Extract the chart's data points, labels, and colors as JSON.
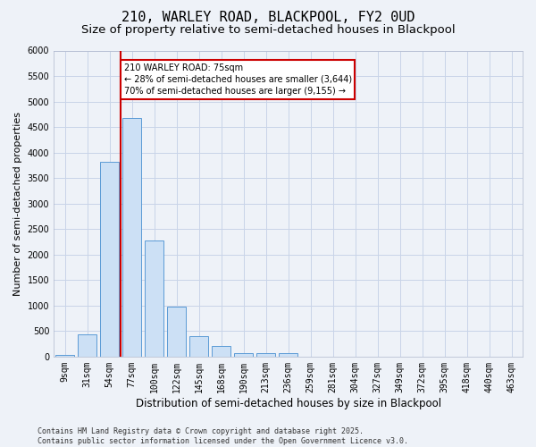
{
  "title_line1": "210, WARLEY ROAD, BLACKPOOL, FY2 0UD",
  "title_line2": "Size of property relative to semi-detached houses in Blackpool",
  "xlabel": "Distribution of semi-detached houses by size in Blackpool",
  "ylabel": "Number of semi-detached properties",
  "categories": [
    "9sqm",
    "31sqm",
    "54sqm",
    "77sqm",
    "100sqm",
    "122sqm",
    "145sqm",
    "168sqm",
    "190sqm",
    "213sqm",
    "236sqm",
    "259sqm",
    "281sqm",
    "304sqm",
    "327sqm",
    "349sqm",
    "372sqm",
    "395sqm",
    "418sqm",
    "440sqm",
    "463sqm"
  ],
  "values": [
    40,
    430,
    3820,
    4670,
    2280,
    980,
    400,
    205,
    75,
    60,
    60,
    0,
    0,
    0,
    0,
    0,
    0,
    0,
    0,
    0,
    0
  ],
  "bar_color": "#cce0f5",
  "bar_edge_color": "#5b9bd5",
  "grid_color": "#c8d4e8",
  "bg_color": "#eef2f8",
  "vline_color": "#cc0000",
  "vline_xindex": 2.5,
  "annotation_text": "210 WARLEY ROAD: 75sqm\n← 28% of semi-detached houses are smaller (3,644)\n70% of semi-detached houses are larger (9,155) →",
  "annotation_box_color": "#cc0000",
  "ylim": [
    0,
    6000
  ],
  "yticks": [
    0,
    500,
    1000,
    1500,
    2000,
    2500,
    3000,
    3500,
    4000,
    4500,
    5000,
    5500,
    6000
  ],
  "footnote": "Contains HM Land Registry data © Crown copyright and database right 2025.\nContains public sector information licensed under the Open Government Licence v3.0.",
  "title_fontsize": 11,
  "subtitle_fontsize": 9.5,
  "tick_fontsize": 7,
  "ylabel_fontsize": 8,
  "xlabel_fontsize": 8.5,
  "footnote_fontsize": 6
}
